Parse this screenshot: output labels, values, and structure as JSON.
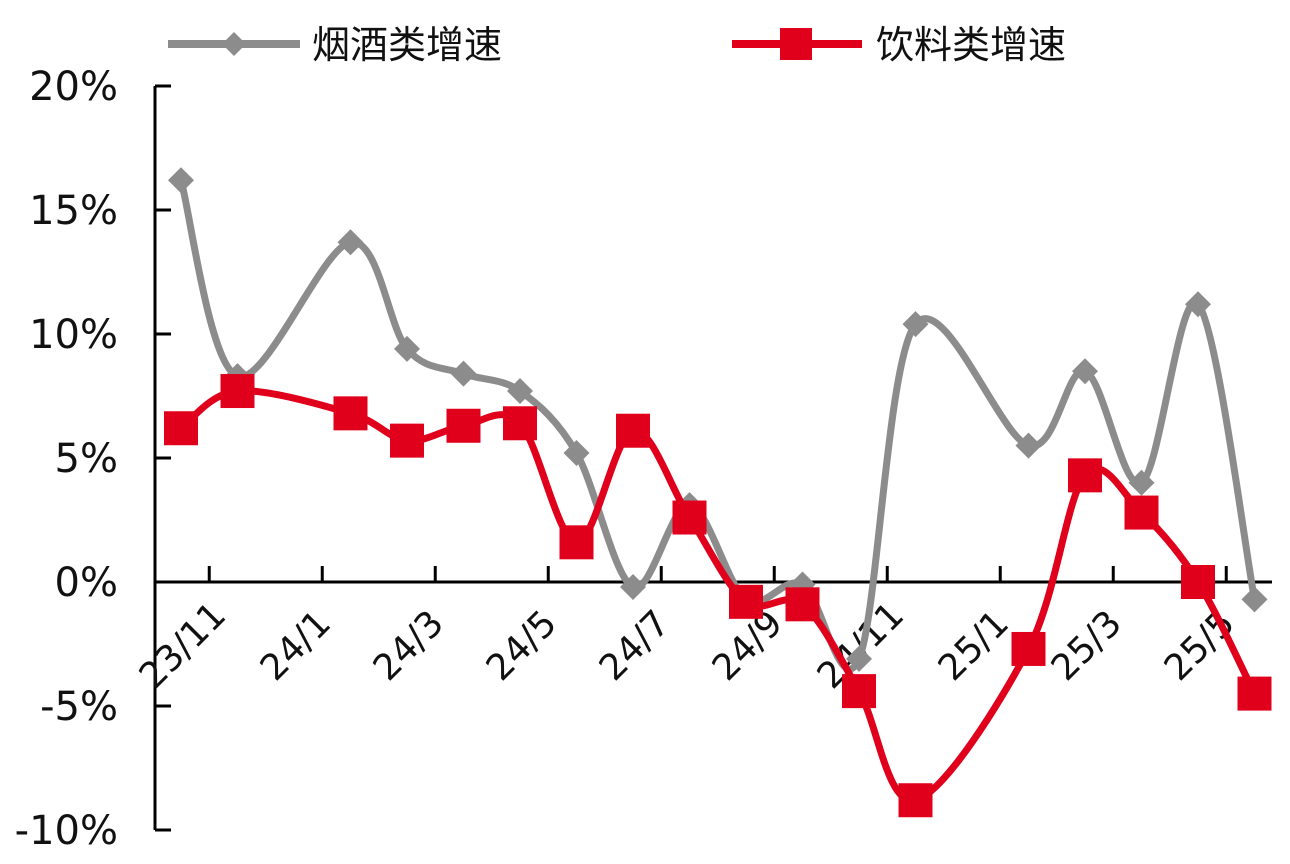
{
  "chart_data": {
    "type": "line",
    "title": "",
    "xlabel": "",
    "ylabel": "",
    "ylim": [
      -10,
      20
    ],
    "yticks": [
      "20%",
      "15%",
      "10%",
      "5%",
      "0%",
      "-5%",
      "-10%"
    ],
    "yticks_values": [
      20,
      15,
      10,
      5,
      0,
      -5,
      -10
    ],
    "x": [
      "23/11",
      "23/12",
      "24/1",
      "24/2",
      "24/3",
      "24/4",
      "24/5",
      "24/6",
      "24/7",
      "24/8",
      "24/9",
      "24/10",
      "24/11",
      "24/12",
      "25/1",
      "25/2",
      "25/3",
      "25/4",
      "25/5",
      "25/6"
    ],
    "xtick_labels": [
      "23/11",
      "24/1",
      "24/3",
      "24/5",
      "24/7",
      "24/9",
      "24/11",
      "25/1",
      "25/3",
      "25/5"
    ],
    "grid": false,
    "legend": "top",
    "series": [
      {
        "name": "烟酒类增速",
        "color": "#8c8c8c",
        "marker": "diamond",
        "points": [
          {
            "x": "23/11",
            "y": 16.2
          },
          {
            "x": "23/12",
            "y": 8.3
          },
          {
            "x": "24/2",
            "y": 13.7
          },
          {
            "x": "24/3",
            "y": 9.4
          },
          {
            "x": "24/4",
            "y": 8.4
          },
          {
            "x": "24/5",
            "y": 7.7
          },
          {
            "x": "24/6",
            "y": 5.2
          },
          {
            "x": "24/7",
            "y": -0.2
          },
          {
            "x": "24/8",
            "y": 3.1
          },
          {
            "x": "24/9",
            "y": -0.7
          },
          {
            "x": "24/10",
            "y": -0.1
          },
          {
            "x": "24/11",
            "y": -3.1
          },
          {
            "x": "24/12",
            "y": 10.4
          },
          {
            "x": "25/2",
            "y": 5.5
          },
          {
            "x": "25/3",
            "y": 8.5
          },
          {
            "x": "25/4",
            "y": 4.0
          },
          {
            "x": "25/5",
            "y": 11.2
          },
          {
            "x": "25/6",
            "y": -0.7
          }
        ]
      },
      {
        "name": "饮料类增速",
        "color": "#e0001b",
        "marker": "square",
        "points": [
          {
            "x": "23/11",
            "y": 6.2
          },
          {
            "x": "23/12",
            "y": 7.7
          },
          {
            "x": "24/2",
            "y": 6.8
          },
          {
            "x": "24/3",
            "y": 5.7
          },
          {
            "x": "24/4",
            "y": 6.3
          },
          {
            "x": "24/5",
            "y": 6.4
          },
          {
            "x": "24/6",
            "y": 1.6
          },
          {
            "x": "24/7",
            "y": 6.1
          },
          {
            "x": "24/8",
            "y": 2.6
          },
          {
            "x": "24/9",
            "y": -0.8
          },
          {
            "x": "24/10",
            "y": -0.9
          },
          {
            "x": "24/11",
            "y": -4.4
          },
          {
            "x": "24/12",
            "y": -8.8
          },
          {
            "x": "25/2",
            "y": -2.7
          },
          {
            "x": "25/3",
            "y": 4.3
          },
          {
            "x": "25/4",
            "y": 2.8
          },
          {
            "x": "25/5",
            "y": 0.0
          },
          {
            "x": "25/6",
            "y": -4.5
          }
        ]
      }
    ]
  }
}
